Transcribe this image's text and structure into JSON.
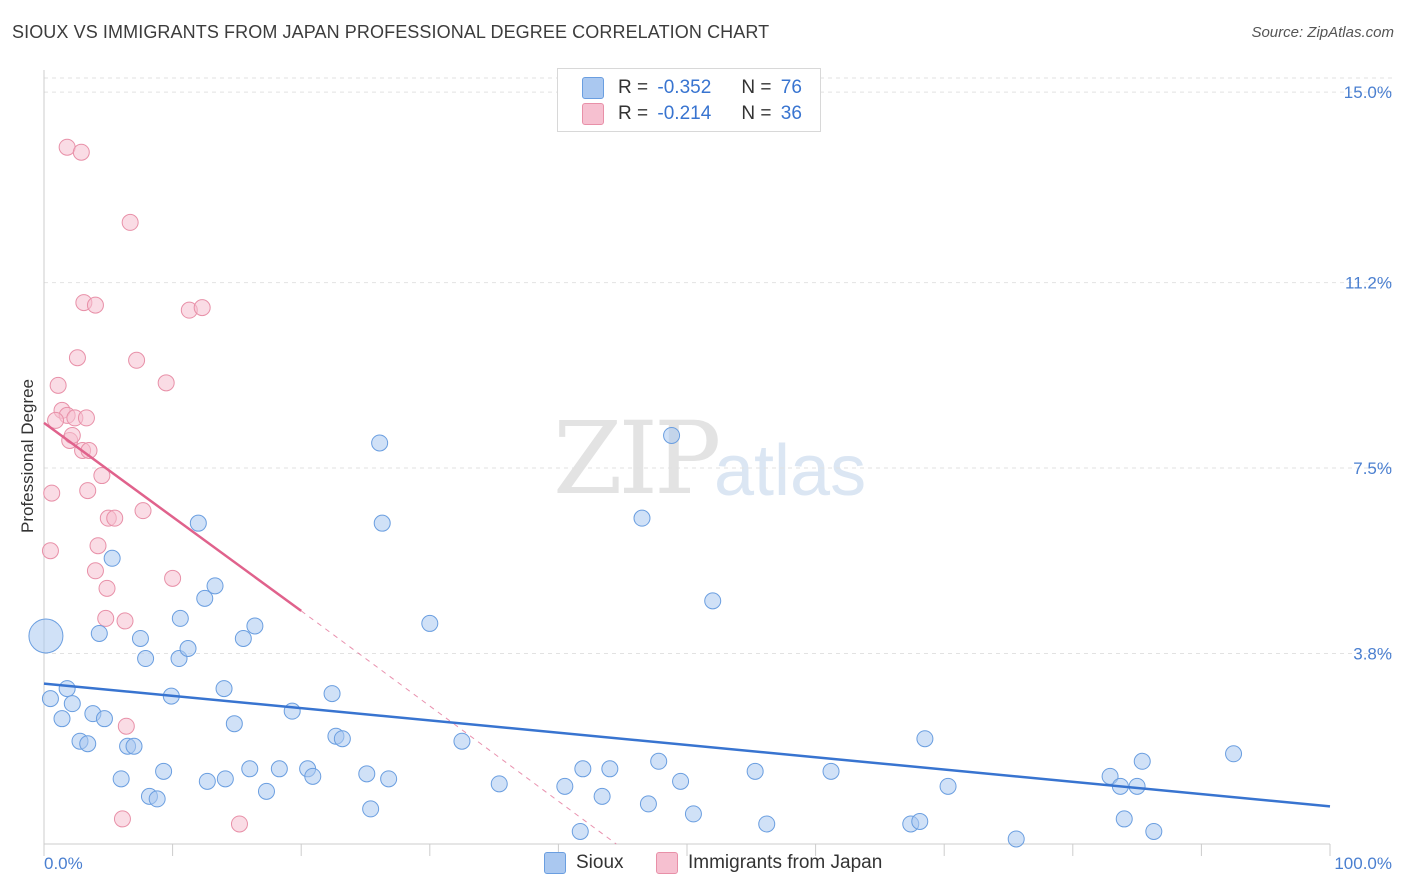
{
  "title": "SIOUX VS IMMIGRANTS FROM JAPAN PROFESSIONAL DEGREE CORRELATION CHART",
  "source": "Source: ZipAtlas.com",
  "watermark": {
    "zip": "ZIP",
    "atlas": "atlas"
  },
  "legend": {
    "rows": [
      {
        "r_label": "R =",
        "r_value": "-0.352",
        "n_label": "N =",
        "n_value": "76",
        "color": "#aac8f0"
      },
      {
        "r_label": "R =",
        "r_value": "-0.214",
        "n_label": "N =",
        "n_value": "36",
        "color": "#f6c0d0"
      }
    ]
  },
  "bottom_legend": [
    {
      "label": "Sioux",
      "color": "#aac8f0"
    },
    {
      "label": "Immigrants from Japan",
      "color": "#f6c0d0"
    }
  ],
  "chart_data": {
    "type": "scatter",
    "title": "SIOUX VS IMMIGRANTS FROM JAPAN PROFESSIONAL DEGREE CORRELATION CHART",
    "xlabel": "",
    "ylabel": "Professional Degree",
    "xlim": [
      0,
      100
    ],
    "ylim": [
      0,
      15.6
    ],
    "x_tick_labels": [
      "0.0%",
      "100.0%"
    ],
    "y_ticks": [
      3.8,
      7.5,
      11.2,
      15.0
    ],
    "y_tick_labels": [
      "3.8%",
      "7.5%",
      "11.2%",
      "15.0%"
    ],
    "grid": true,
    "legend_position": "top-center",
    "series": [
      {
        "name": "Sioux",
        "color": "#aac8f0",
        "stroke": "#6a9ee0",
        "trend": {
          "x": [
            0,
            100
          ],
          "y": [
            3.2,
            0.75
          ],
          "color": "#3874d0"
        },
        "points": [
          [
            0.5,
            2.9
          ],
          [
            1.4,
            2.5
          ],
          [
            1.8,
            3.1
          ],
          [
            2.2,
            2.8
          ],
          [
            2.8,
            2.05
          ],
          [
            3.4,
            2.0
          ],
          [
            3.8,
            2.6
          ],
          [
            4.3,
            4.2
          ],
          [
            4.7,
            2.5
          ],
          [
            5.3,
            5.7
          ],
          [
            6.0,
            1.3
          ],
          [
            6.5,
            1.95
          ],
          [
            7.0,
            1.95
          ],
          [
            7.5,
            4.1
          ],
          [
            7.9,
            3.7
          ],
          [
            8.2,
            0.95
          ],
          [
            8.8,
            0.9
          ],
          [
            9.3,
            1.45
          ],
          [
            9.9,
            2.95
          ],
          [
            10.5,
            3.7
          ],
          [
            10.6,
            4.5
          ],
          [
            11.2,
            3.9
          ],
          [
            12.0,
            6.4
          ],
          [
            12.5,
            4.9
          ],
          [
            12.7,
            1.25
          ],
          [
            13.3,
            5.15
          ],
          [
            14.1,
            1.3
          ],
          [
            14.0,
            3.1
          ],
          [
            14.8,
            2.4
          ],
          [
            15.5,
            4.1
          ],
          [
            16.0,
            1.5
          ],
          [
            16.4,
            4.35
          ],
          [
            17.3,
            1.05
          ],
          [
            18.3,
            1.5
          ],
          [
            19.3,
            2.65
          ],
          [
            20.5,
            1.5
          ],
          [
            20.9,
            1.35
          ],
          [
            22.4,
            3.0
          ],
          [
            22.7,
            2.15
          ],
          [
            23.2,
            2.1
          ],
          [
            25.1,
            1.4
          ],
          [
            25.4,
            0.7
          ],
          [
            26.1,
            8.0
          ],
          [
            26.3,
            6.4
          ],
          [
            26.8,
            1.3
          ],
          [
            30.0,
            4.4
          ],
          [
            32.5,
            2.05
          ],
          [
            35.4,
            1.2
          ],
          [
            40.5,
            1.15
          ],
          [
            41.7,
            0.25
          ],
          [
            41.9,
            1.5
          ],
          [
            43.4,
            0.95
          ],
          [
            44.0,
            1.5
          ],
          [
            46.5,
            6.5
          ],
          [
            47.0,
            0.8
          ],
          [
            47.8,
            1.65
          ],
          [
            48.8,
            8.15
          ],
          [
            49.5,
            1.25
          ],
          [
            50.5,
            0.6
          ],
          [
            52.0,
            4.85
          ],
          [
            55.3,
            1.45
          ],
          [
            56.2,
            0.4
          ],
          [
            61.2,
            1.45
          ],
          [
            67.4,
            0.4
          ],
          [
            68.1,
            0.45
          ],
          [
            68.5,
            2.1
          ],
          [
            70.3,
            1.15
          ],
          [
            75.6,
            0.1
          ],
          [
            82.9,
            1.35
          ],
          [
            83.7,
            1.15
          ],
          [
            84.0,
            0.5
          ],
          [
            85.0,
            1.15
          ],
          [
            85.4,
            1.65
          ],
          [
            86.3,
            0.25
          ],
          [
            92.5,
            1.8
          ],
          [
            0.15,
            4.15
          ]
        ]
      },
      {
        "name": "Immigrants from Japan",
        "color": "#f6c0d0",
        "stroke": "#e890a8",
        "trend": {
          "x": [
            0,
            20
          ],
          "y": [
            8.4,
            4.65
          ],
          "color": "#e0628c",
          "dashed_to": [
            44.5,
            0.0
          ]
        },
        "points": [
          [
            1.8,
            13.9
          ],
          [
            2.9,
            13.8
          ],
          [
            6.7,
            12.4
          ],
          [
            3.1,
            10.8
          ],
          [
            4.0,
            10.75
          ],
          [
            11.3,
            10.65
          ],
          [
            12.3,
            10.7
          ],
          [
            2.6,
            9.7
          ],
          [
            7.2,
            9.65
          ],
          [
            1.1,
            9.15
          ],
          [
            9.5,
            9.2
          ],
          [
            1.4,
            8.65
          ],
          [
            1.8,
            8.55
          ],
          [
            2.4,
            8.5
          ],
          [
            2.0,
            8.05
          ],
          [
            2.2,
            8.15
          ],
          [
            3.0,
            7.85
          ],
          [
            3.5,
            7.85
          ],
          [
            0.6,
            7.0
          ],
          [
            3.4,
            7.05
          ],
          [
            4.5,
            7.35
          ],
          [
            5.0,
            6.5
          ],
          [
            5.5,
            6.5
          ],
          [
            7.7,
            6.65
          ],
          [
            0.5,
            5.85
          ],
          [
            4.2,
            5.95
          ],
          [
            4.0,
            5.45
          ],
          [
            10.0,
            5.3
          ],
          [
            4.9,
            5.1
          ],
          [
            4.8,
            4.5
          ],
          [
            6.3,
            4.45
          ],
          [
            6.4,
            2.35
          ],
          [
            6.1,
            0.5
          ],
          [
            15.2,
            0.4
          ],
          [
            0.9,
            8.45
          ],
          [
            3.3,
            8.5
          ]
        ]
      }
    ]
  }
}
